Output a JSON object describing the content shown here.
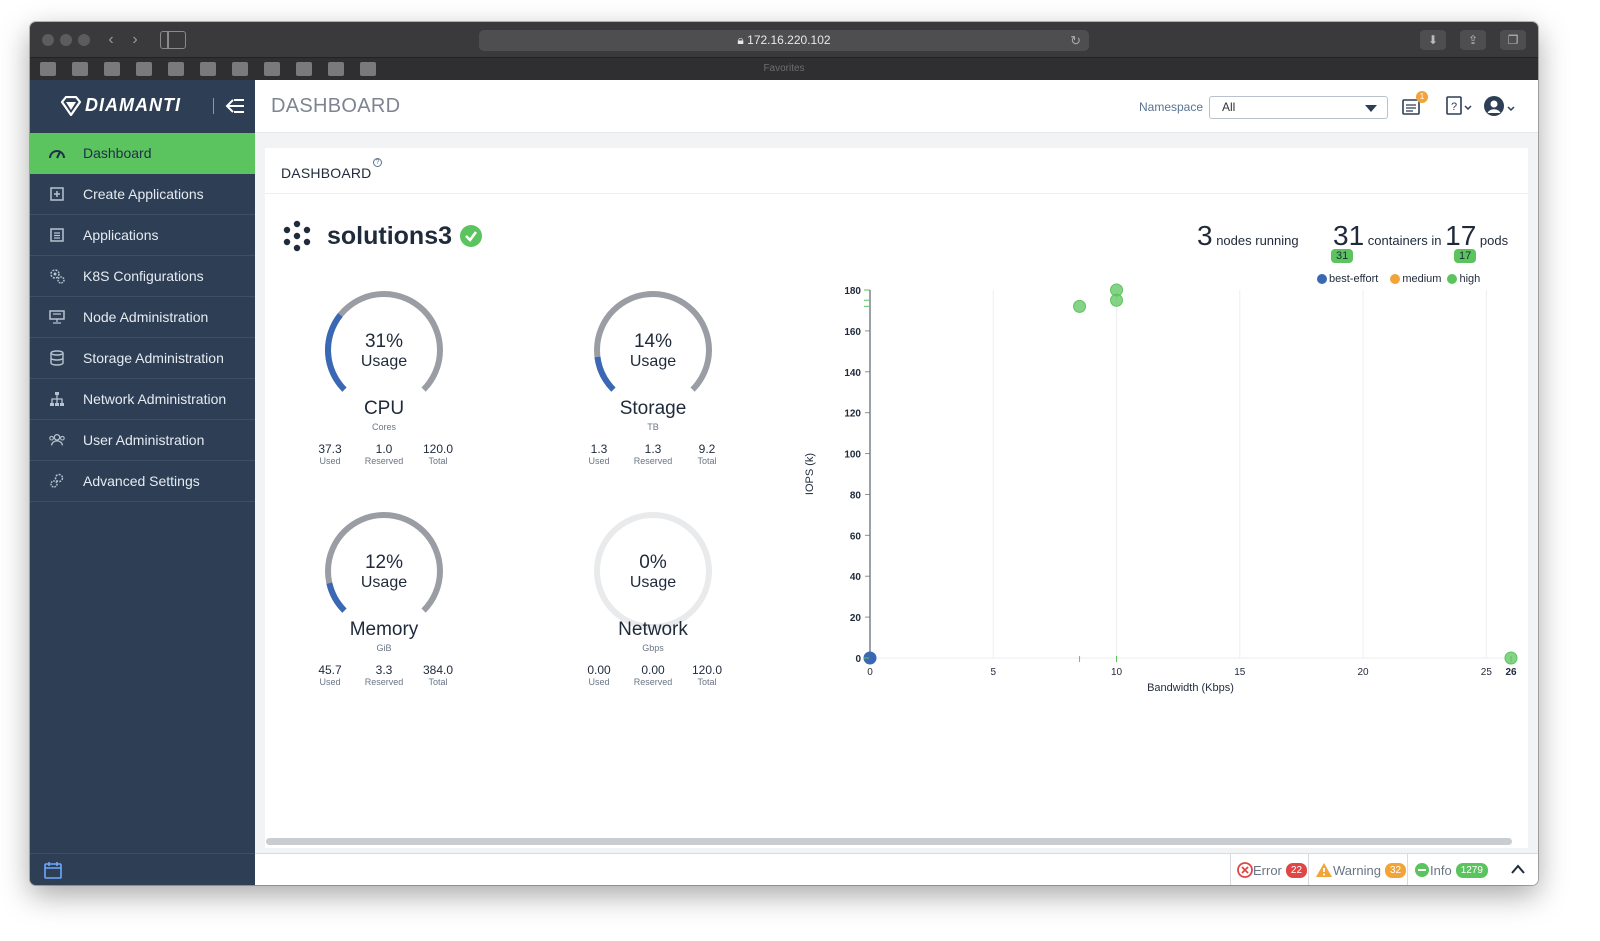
{
  "browser": {
    "url": "172.16.220.102",
    "favorites_label": "Favorites"
  },
  "brand": {
    "name": "DIAMANTI"
  },
  "header": {
    "title": "DASHBOARD",
    "namespace_label": "Namespace",
    "namespace_value": "All",
    "notifications_count": "1"
  },
  "sidebar": {
    "items": [
      {
        "label": "Dashboard",
        "icon": "dashboard-icon",
        "active": true
      },
      {
        "label": "Create Applications",
        "icon": "plus-square-icon"
      },
      {
        "label": "Applications",
        "icon": "list-icon"
      },
      {
        "label": "K8S Configurations",
        "icon": "gears-icon"
      },
      {
        "label": "Node Administration",
        "icon": "server-icon"
      },
      {
        "label": "Storage Administration",
        "icon": "database-icon"
      },
      {
        "label": "Network Administration",
        "icon": "network-icon"
      },
      {
        "label": "User Administration",
        "icon": "users-icon"
      },
      {
        "label": "Advanced Settings",
        "icon": "settings-icon"
      }
    ]
  },
  "panel": {
    "title": "DASHBOARD",
    "help": "?",
    "cluster_name": "solutions3",
    "nodes_count": "3",
    "nodes_label": "nodes running",
    "containers_count": "31",
    "containers_label": "containers in",
    "pods_count": "17",
    "pods_label": "pods",
    "containers_badge": "31",
    "pods_badge": "17"
  },
  "gauges": {
    "cpu": {
      "percent": "31%",
      "usage_label": "Usage",
      "name": "CPU",
      "unit": "Cores",
      "used": "37.3",
      "reserved": "1.0",
      "total": "120.0",
      "fraction": 0.31,
      "color": "#3a68b4"
    },
    "storage": {
      "percent": "14%",
      "usage_label": "Usage",
      "name": "Storage",
      "unit": "TB",
      "used": "1.3",
      "reserved": "1.3",
      "total": "9.2",
      "fraction": 0.14,
      "color": "#3a68b4"
    },
    "memory": {
      "percent": "12%",
      "usage_label": "Usage",
      "name": "Memory",
      "unit": "GiB",
      "used": "45.7",
      "reserved": "3.3",
      "total": "384.0",
      "fraction": 0.12,
      "color": "#3a68b4"
    },
    "network": {
      "percent": "0%",
      "usage_label": "Usage",
      "name": "Network",
      "unit": "Gbps",
      "used": "0.00",
      "reserved": "0.00",
      "total": "120.0",
      "fraction": 0.0,
      "color": "#3a68b4"
    },
    "labels": {
      "used": "Used",
      "reserved": "Reserved",
      "total": "Total"
    }
  },
  "chart_data": {
    "type": "scatter",
    "xlabel": "Bandwidth (Kbps)",
    "ylabel": "IOPS (k)",
    "xlim": [
      0,
      26
    ],
    "ylim": [
      0,
      180
    ],
    "x_ticks": [
      "0",
      "5",
      "10",
      "15",
      "20",
      "25",
      "26"
    ],
    "y_ticks": [
      "0",
      "20",
      "40",
      "60",
      "80",
      "100",
      "120",
      "140",
      "160",
      "180"
    ],
    "grid": true,
    "legend_position": "top-right",
    "series": [
      {
        "name": "best-effort",
        "color": "#3a68b4",
        "points": [
          [
            0,
            0
          ]
        ]
      },
      {
        "name": "medium",
        "color": "#f0a43a",
        "points": []
      },
      {
        "name": "high",
        "color": "#5cc45e",
        "points": [
          [
            8.5,
            172
          ],
          [
            10,
            180
          ],
          [
            10,
            175
          ],
          [
            26,
            0
          ]
        ]
      }
    ]
  },
  "statusbar": {
    "error_label": "Error",
    "error_count": "22",
    "warning_label": "Warning",
    "warning_count": "32",
    "info_label": "Info",
    "info_count": "1279",
    "colors": {
      "error": "#e04646",
      "warning": "#f0a43a",
      "info": "#5cc45e"
    }
  }
}
